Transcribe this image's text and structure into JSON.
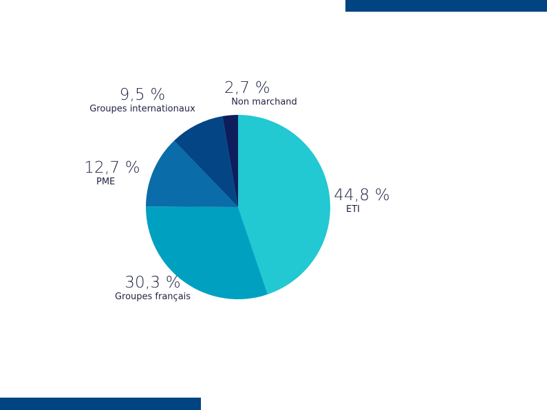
{
  "decorations": {
    "top_bar_color": "#004482",
    "bottom_bar_color": "#004482"
  },
  "chart_data": {
    "type": "pie",
    "title": "",
    "start_angle_deg": 0,
    "direction": "clockwise",
    "slices": [
      {
        "label": "ETI",
        "value": 44.8,
        "display": "44,8 %",
        "color": "#22c8d2"
      },
      {
        "label": "Groupes français",
        "value": 30.3,
        "display": "30,3 %",
        "color": "#00a1c0"
      },
      {
        "label": "PME",
        "value": 12.7,
        "display": "12,7 %",
        "color": "#0a6ca8"
      },
      {
        "label": "Groupes internationaux",
        "value": 9.5,
        "display": "9,5 %",
        "color": "#044585"
      },
      {
        "label": "Non marchand",
        "value": 2.7,
        "display": "2,7 %",
        "color": "#0e1d5c"
      }
    ],
    "categories": [
      "ETI",
      "Groupes français",
      "PME",
      "Groupes internationaux",
      "Non marchand"
    ],
    "values": [
      44.8,
      30.3,
      12.7,
      9.5,
      2.7
    ],
    "legend": "none (direct labels)"
  },
  "labels": {
    "eti": {
      "pct": "44,8 %",
      "name": "ETI"
    },
    "groupes_francais": {
      "pct": "30,3 %",
      "name": "Groupes français"
    },
    "pme": {
      "pct": "12,7 %",
      "name": "PME"
    },
    "groupes_internationaux": {
      "pct": "9,5 %",
      "name": "Groupes internationaux"
    },
    "non_marchand": {
      "pct": "2,7 %",
      "name": "Non marchand"
    }
  }
}
